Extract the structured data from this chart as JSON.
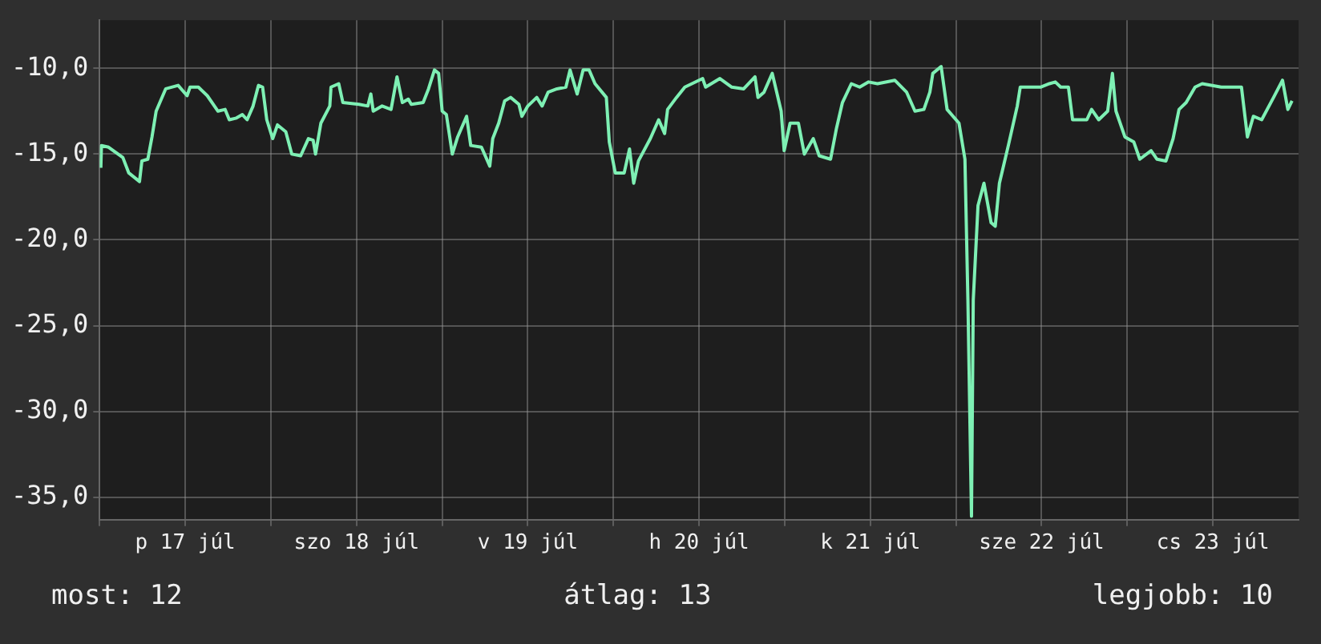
{
  "chart_data": {
    "type": "line",
    "color": "#7ef0b4",
    "grid": true,
    "xlim": [
      "--07-17T00:00",
      "--07-24T00:00"
    ],
    "xticks": [
      {
        "value": "--07-17T00:00",
        "label": null
      },
      {
        "value": "--07-17T12:00",
        "label": "p 17 júl"
      },
      {
        "value": "--07-18T00:00",
        "label": null
      },
      {
        "value": "--07-18T12:00",
        "label": "szo 18 júl"
      },
      {
        "value": "--07-19T00:00",
        "label": null
      },
      {
        "value": "--07-19T12:00",
        "label": "v 19 júl"
      },
      {
        "value": "--07-20T00:00",
        "label": null
      },
      {
        "value": "--07-20T12:00",
        "label": "h 20 júl"
      },
      {
        "value": "--07-21T00:00",
        "label": null
      },
      {
        "value": "--07-21T12:00",
        "label": "k 21 júl"
      },
      {
        "value": "--07-22T00:00",
        "label": null
      },
      {
        "value": "--07-22T12:00",
        "label": "sze 22 júl"
      },
      {
        "value": "--07-23T00:00",
        "label": null
      },
      {
        "value": "--07-23T12:00",
        "label": "cs 23 júl"
      }
    ],
    "ylim": [
      -36.3,
      -7.2
    ],
    "yticks": [
      {
        "value": -35,
        "label": "-35,0"
      },
      {
        "value": -30,
        "label": "-30,0"
      },
      {
        "value": -25,
        "label": "-25,0"
      },
      {
        "value": -20,
        "label": "-20,0"
      },
      {
        "value": -15,
        "label": "-15,0"
      },
      {
        "value": -10,
        "label": "-10,0"
      }
    ],
    "annotations": [
      "most: 12",
      "átlag: 13",
      "legjobb: 10"
    ],
    "x": [
      "--07-17T00:10",
      "--07-17T00:15",
      "--07-17T01:15",
      "--07-17T03:15",
      "--07-17T04:05",
      "--07-17T05:35",
      "--07-17T05:55",
      "--07-17T06:45",
      "--07-17T07:20",
      "--07-17T07:55",
      "--07-17T09:15",
      "--07-17T11:00",
      "--07-17T12:15",
      "--07-17T12:40",
      "--07-17T13:50",
      "--07-17T15:05",
      "--07-17T16:35",
      "--07-17T17:35",
      "--07-17T18:10",
      "--07-17T19:10",
      "--07-17T20:00",
      "--07-17T20:40",
      "--07-17T21:30",
      "--07-17T22:15",
      "--07-17T22:50",
      "--07-17T23:25",
      "--07-18T00:15",
      "--07-18T00:55",
      "--07-18T02:05",
      "--07-18T02:55",
      "--07-18T04:10",
      "--07-18T05:15",
      "--07-18T05:55",
      "--07-18T06:15",
      "--07-18T07:00",
      "--07-18T08:15",
      "--07-18T08:25",
      "--07-18T09:30",
      "--07-18T10:05",
      "--07-18T12:20",
      "--07-18T13:35",
      "--07-18T14:00",
      "--07-18T14:20",
      "--07-18T15:35",
      "--07-18T16:50",
      "--07-18T17:40",
      "--07-18T18:25",
      "--07-18T19:15",
      "--07-18T19:40",
      "--07-18T21:20",
      "--07-18T22:05",
      "--07-18T22:55",
      "--07-18T23:30",
      "--07-19T00:00",
      "--07-19T00:35",
      "--07-19T01:25",
      "--07-19T02:10",
      "--07-19T03:25",
      "--07-19T04:00",
      "--07-19T05:30",
      "--07-19T06:40",
      "--07-19T07:05",
      "--07-19T07:55",
      "--07-19T08:45",
      "--07-19T09:35",
      "--07-19T10:45",
      "--07-19T11:10",
      "--07-19T12:00",
      "--07-19T13:15",
      "--07-19T14:00",
      "--07-19T14:50",
      "--07-19T16:05",
      "--07-19T17:20",
      "--07-19T17:55",
      "--07-19T18:55",
      "--07-19T19:45",
      "--07-19T20:35",
      "--07-19T21:25",
      "--07-19T23:00",
      "--07-19T23:25",
      "--07-20T00:15",
      "--07-20T01:30",
      "--07-20T02:15",
      "--07-20T02:50",
      "--07-20T03:30",
      "--07-20T05:10",
      "--07-20T06:20",
      "--07-20T07:10",
      "--07-20T07:35",
      "--07-20T08:50",
      "--07-20T10:00",
      "--07-20T12:30",
      "--07-20T12:55",
      "--07-20T14:55",
      "--07-20T16:35",
      "--07-20T18:15",
      "--07-20T19:50",
      "--07-20T20:15",
      "--07-20T21:05",
      "--07-20T22:15",
      "--07-20T23:30",
      "--07-20T23:55",
      "--07-21T00:45",
      "--07-21T01:55",
      "--07-21T02:45",
      "--07-21T04:00",
      "--07-21T04:50",
      "--07-21T06:25",
      "--07-21T07:15",
      "--07-21T08:05",
      "--07-21T09:20",
      "--07-21T10:30",
      "--07-21T11:45",
      "--07-21T13:00",
      "--07-21T15:25",
      "--07-21T17:05",
      "--07-21T18:15",
      "--07-21T19:30",
      "--07-21T20:20",
      "--07-21T20:45",
      "--07-21T21:55",
      "--07-21T22:45",
      "--07-22T00:25",
      "--07-22T01:15",
      "--07-22T01:40",
      "--07-22T02:10",
      "--07-22T02:25",
      "--07-22T03:05",
      "--07-22T03:55",
      "--07-22T04:55",
      "--07-22T05:30",
      "--07-22T06:05",
      "--07-22T07:20",
      "--07-22T08:35",
      "--07-22T09:00",
      "--07-22T11:50",
      "--07-22T13:05",
      "--07-22T13:55",
      "--07-22T14:40",
      "--07-22T15:45",
      "--07-22T16:20",
      "--07-22T18:20",
      "--07-22T19:00",
      "--07-22T20:00",
      "--07-22T21:15",
      "--07-22T21:55",
      "--07-22T22:25",
      "--07-22T23:40",
      "--07-23T00:55",
      "--07-23T01:45",
      "--07-23T03:20",
      "--07-23T04:10",
      "--07-23T05:25",
      "--07-23T06:25",
      "--07-23T07:15",
      "--07-23T08:15",
      "--07-23T09:30",
      "--07-23T10:30",
      "--07-23T13:10",
      "--07-23T16:00",
      "--07-23T16:50",
      "--07-23T17:40",
      "--07-23T18:50",
      "--07-23T20:30",
      "--07-23T21:45",
      "--07-23T22:30",
      "--07-23T23:05"
    ],
    "values": [
      -15.8,
      -14.5,
      -14.6,
      -15.2,
      -16.1,
      -16.6,
      -15.4,
      -15.3,
      -14.0,
      -12.5,
      -11.2,
      -11.0,
      -11.6,
      -11.1,
      -11.1,
      -11.6,
      -12.5,
      -12.4,
      -13.0,
      -12.9,
      -12.7,
      -13.0,
      -12.2,
      -11.0,
      -11.1,
      -13.0,
      -14.1,
      -13.3,
      -13.7,
      -15.0,
      -15.1,
      -14.1,
      -14.2,
      -15.0,
      -13.2,
      -12.2,
      -11.1,
      -10.9,
      -12.0,
      -12.1,
      -12.2,
      -11.5,
      -12.5,
      -12.2,
      -12.4,
      -10.5,
      -12.0,
      -11.8,
      -12.1,
      -12.0,
      -11.2,
      -10.1,
      -10.3,
      -12.5,
      -12.7,
      -15.0,
      -14.0,
      -12.8,
      -14.5,
      -14.6,
      -15.7,
      -14.1,
      -13.2,
      -11.9,
      -11.7,
      -12.1,
      -12.8,
      -12.2,
      -11.7,
      -12.2,
      -11.4,
      -11.2,
      -11.1,
      -10.1,
      -11.5,
      -10.1,
      -10.1,
      -10.9,
      -11.7,
      -14.3,
      -16.1,
      -16.1,
      -14.7,
      -16.7,
      -15.4,
      -14.1,
      -13.0,
      -13.8,
      -12.4,
      -11.7,
      -11.1,
      -10.6,
      -11.1,
      -10.6,
      -11.1,
      -11.2,
      -10.5,
      -11.7,
      -11.4,
      -10.3,
      -12.5,
      -14.8,
      -13.2,
      -13.2,
      -15.0,
      -14.1,
      -15.1,
      -15.3,
      -13.5,
      -12.0,
      -10.9,
      -11.1,
      -10.8,
      -10.9,
      -10.7,
      -11.4,
      -12.5,
      -12.4,
      -11.4,
      -10.3,
      -9.9,
      -12.4,
      -13.2,
      -15.3,
      -23.5,
      -36.1,
      -23.5,
      -18.0,
      -16.7,
      -19.0,
      -19.2,
      -16.7,
      -14.5,
      -12.2,
      -11.1,
      -11.1,
      -10.9,
      -10.8,
      -11.1,
      -11.1,
      -13.0,
      -13.0,
      -12.4,
      -13.0,
      -12.5,
      -10.3,
      -12.5,
      -14.0,
      -14.3,
      -15.3,
      -14.8,
      -15.3,
      -15.4,
      -14.1,
      -12.4,
      -12.0,
      -11.1,
      -10.9,
      -11.1,
      -11.1,
      -14.0,
      -12.8,
      -13.0,
      -11.7,
      -10.7,
      -12.4,
      -11.9
    ]
  }
}
